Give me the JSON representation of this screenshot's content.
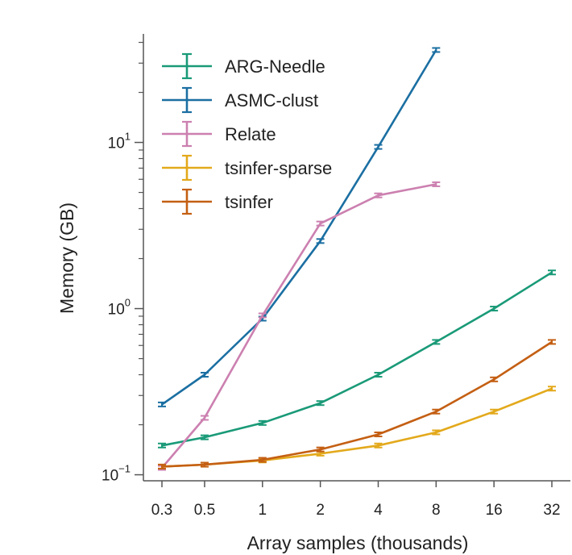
{
  "chart_data": {
    "type": "line",
    "title": "",
    "xlabel": "Array samples (thousands)",
    "ylabel": "Memory (GB)",
    "x_scale": "log",
    "y_scale": "log",
    "x": [
      0.3,
      0.5,
      1,
      2,
      4,
      8,
      16,
      32
    ],
    "x_tick_labels": [
      "0.3",
      "0.5",
      "1",
      "2",
      "4",
      "8",
      "16",
      "32"
    ],
    "y_ticks": [
      {
        "base": "10",
        "exp": "−1",
        "value": 0.1
      },
      {
        "base": "10",
        "exp": "0",
        "value": 1
      },
      {
        "base": "10",
        "exp": "1",
        "value": 10
      }
    ],
    "ylim": [
      0.092,
      45
    ],
    "legend_position": "top-left",
    "series": [
      {
        "name": "ARG-Needle",
        "color": "#1a9a78",
        "values": [
          0.15,
          0.168,
          0.205,
          0.27,
          0.4,
          0.63,
          1.0,
          1.65
        ]
      },
      {
        "name": "ASMC-clust",
        "color": "#1b6fa2",
        "values": [
          0.265,
          0.4,
          0.87,
          2.55,
          9.4,
          36.0,
          null,
          null
        ]
      },
      {
        "name": "Relate",
        "color": "#cc80b0",
        "values": [
          0.11,
          0.22,
          0.91,
          3.25,
          4.8,
          5.6,
          null,
          null
        ]
      },
      {
        "name": "tsinfer-sparse",
        "color": "#e3a91b",
        "values": [
          0.112,
          0.115,
          0.122,
          0.134,
          0.15,
          0.18,
          0.24,
          0.33
        ]
      },
      {
        "name": "tsinfer",
        "color": "#c45f13",
        "values": [
          0.112,
          0.115,
          0.123,
          0.142,
          0.175,
          0.24,
          0.375,
          0.63
        ]
      }
    ]
  }
}
